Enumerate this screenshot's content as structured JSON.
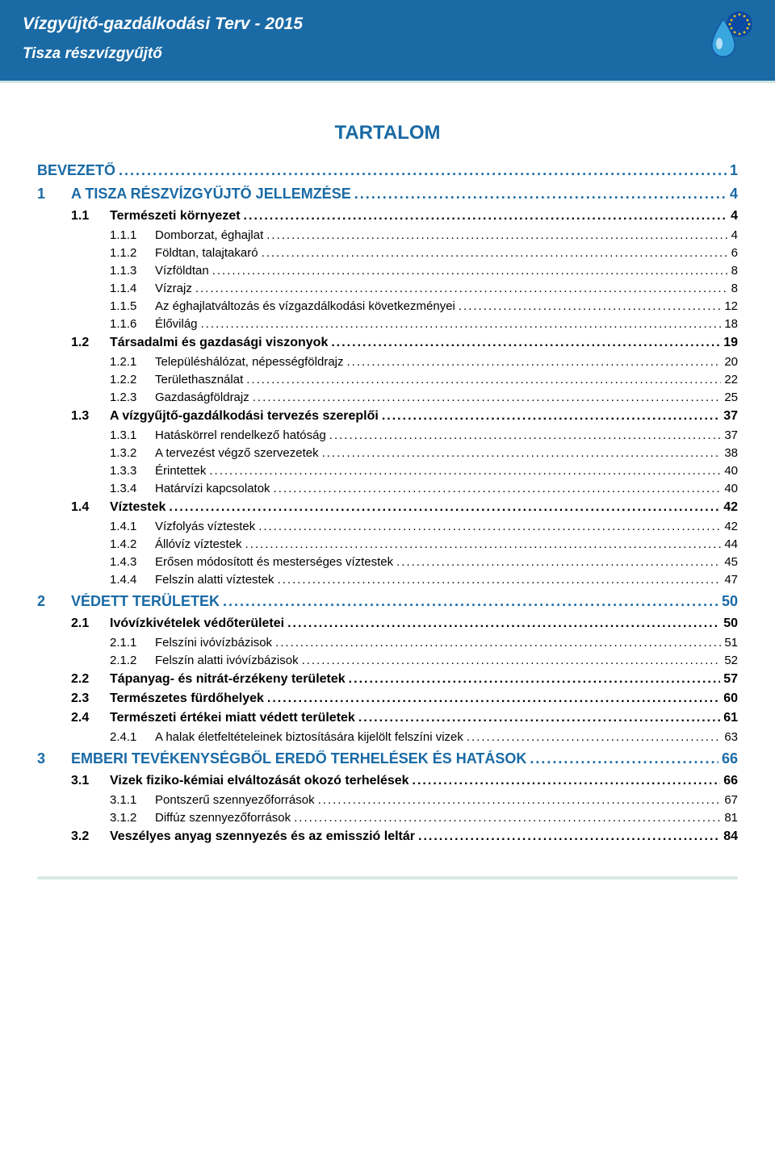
{
  "header": {
    "title": "Vízgyűjtő-gazdálkodási Terv - 2015",
    "subtitle": "Tisza részvízgyűjtő"
  },
  "colors": {
    "brand": "#1a6aa5",
    "headerBg": "#1a6aa5",
    "headerText": "#ffffff",
    "accentBar": "#cfe6e3",
    "bodyText": "#000000",
    "pageBg": "#ffffff"
  },
  "tocTitle": "TARTALOM",
  "toc": [
    {
      "level": 0,
      "num": "",
      "label": "BEVEZETŐ",
      "page": "1"
    },
    {
      "level": 0,
      "num": "1",
      "label": "A TISZA RÉSZVÍZGYŰJTŐ JELLEMZÉSE",
      "page": "4"
    },
    {
      "level": 1,
      "num": "1.1",
      "label": "Természeti környezet",
      "page": "4"
    },
    {
      "level": 2,
      "num": "1.1.1",
      "label": "Domborzat, éghajlat",
      "page": "4"
    },
    {
      "level": 2,
      "num": "1.1.2",
      "label": "Földtan, talajtakaró",
      "page": "6"
    },
    {
      "level": 2,
      "num": "1.1.3",
      "label": "Vízföldtan",
      "page": "8"
    },
    {
      "level": 2,
      "num": "1.1.4",
      "label": "Vízrajz",
      "page": "8"
    },
    {
      "level": 2,
      "num": "1.1.5",
      "label": "Az éghajlatváltozás és vízgazdálkodási következményei",
      "page": "12"
    },
    {
      "level": 2,
      "num": "1.1.6",
      "label": "Élővilág",
      "page": "18"
    },
    {
      "level": 1,
      "num": "1.2",
      "label": "Társadalmi és gazdasági viszonyok",
      "page": "19"
    },
    {
      "level": 2,
      "num": "1.2.1",
      "label": "Településhálózat, népességföldrajz",
      "page": "20"
    },
    {
      "level": 2,
      "num": "1.2.2",
      "label": "Területhasználat",
      "page": "22"
    },
    {
      "level": 2,
      "num": "1.2.3",
      "label": "Gazdaságföldrajz",
      "page": "25"
    },
    {
      "level": 1,
      "num": "1.3",
      "label": "A vízgyűjtő-gazdálkodási tervezés szereplői",
      "page": "37"
    },
    {
      "level": 2,
      "num": "1.3.1",
      "label": "Hatáskörrel rendelkező hatóság",
      "page": "37"
    },
    {
      "level": 2,
      "num": "1.3.2",
      "label": "A tervezést végző szervezetek",
      "page": "38"
    },
    {
      "level": 2,
      "num": "1.3.3",
      "label": "Érintettek",
      "page": "40"
    },
    {
      "level": 2,
      "num": "1.3.4",
      "label": "Határvízi kapcsolatok",
      "page": "40"
    },
    {
      "level": 1,
      "num": "1.4",
      "label": "Víztestek",
      "page": "42"
    },
    {
      "level": 2,
      "num": "1.4.1",
      "label": "Vízfolyás víztestek",
      "page": "42"
    },
    {
      "level": 2,
      "num": "1.4.2",
      "label": "Állóvíz víztestek",
      "page": "44"
    },
    {
      "level": 2,
      "num": "1.4.3",
      "label": "Erősen módosított és mesterséges víztestek",
      "page": "45"
    },
    {
      "level": 2,
      "num": "1.4.4",
      "label": "Felszín alatti víztestek",
      "page": "47"
    },
    {
      "level": 0,
      "num": "2",
      "label": "VÉDETT TERÜLETEK",
      "page": "50"
    },
    {
      "level": 1,
      "num": "2.1",
      "label": "Ivóvízkivételek védőterületei",
      "page": "50"
    },
    {
      "level": 2,
      "num": "2.1.1",
      "label": "Felszíni ivóvízbázisok",
      "page": "51"
    },
    {
      "level": 2,
      "num": "2.1.2",
      "label": "Felszín alatti ivóvízbázisok",
      "page": "52"
    },
    {
      "level": 1,
      "num": "2.2",
      "label": "Tápanyag- és nitrát-érzékeny területek",
      "page": "57"
    },
    {
      "level": 1,
      "num": "2.3",
      "label": "Természetes fürdőhelyek",
      "page": "60"
    },
    {
      "level": 1,
      "num": "2.4",
      "label": "Természeti értékei miatt védett területek",
      "page": "61"
    },
    {
      "level": 2,
      "num": "2.4.1",
      "label": "A halak életfeltételeinek biztosítására kijelölt felszíni vizek",
      "page": "63"
    },
    {
      "level": 0,
      "num": "3",
      "label": "EMBERI TEVÉKENYSÉGBŐL EREDŐ TERHELÉSEK ÉS HATÁSOK",
      "page": "66"
    },
    {
      "level": 1,
      "num": "3.1",
      "label": "Vizek fiziko-kémiai elváltozását okozó terhelések",
      "page": "66"
    },
    {
      "level": 2,
      "num": "3.1.1",
      "label": "Pontszerű szennyezőforrások",
      "page": "67"
    },
    {
      "level": 2,
      "num": "3.1.2",
      "label": "Diffúz szennyezőforrások",
      "page": "81"
    },
    {
      "level": 1,
      "num": "3.2",
      "label": "Veszélyes anyag szennyezés és az emisszió leltár",
      "page": "84"
    }
  ]
}
